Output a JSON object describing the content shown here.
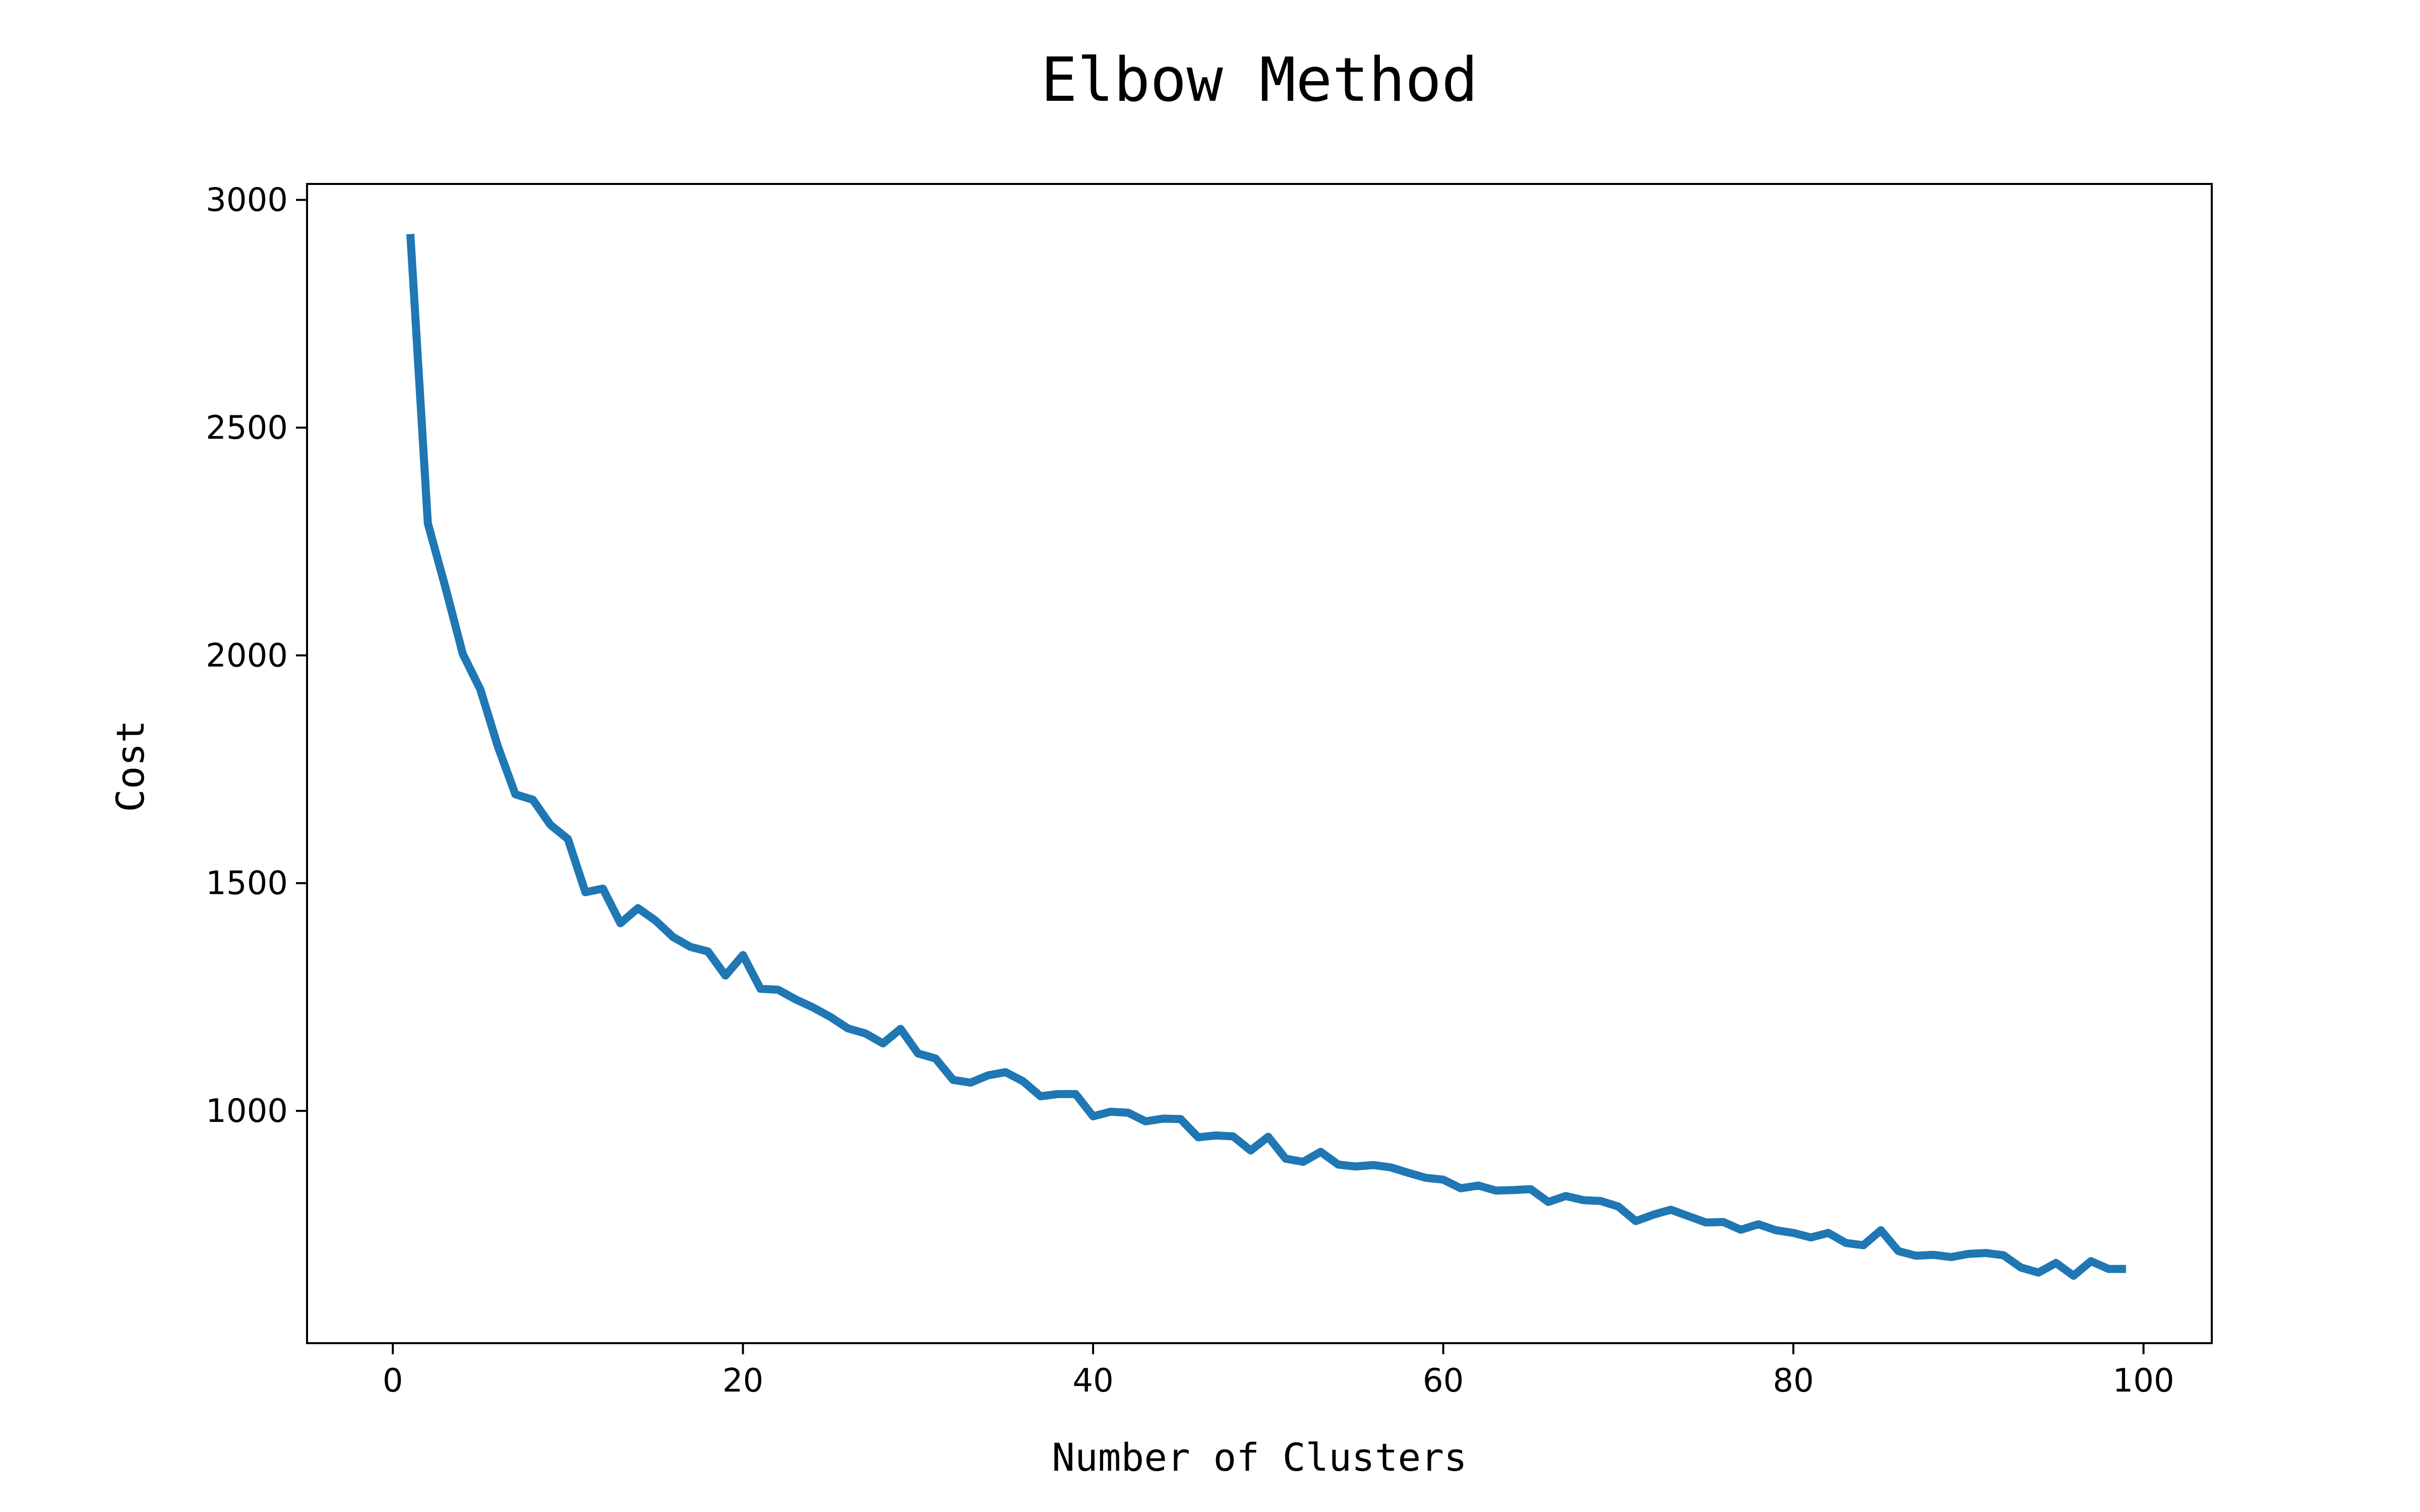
{
  "chart_data": {
    "type": "line",
    "title": "Elbow Method",
    "xlabel": "Number of Clusters",
    "ylabel": "Cost",
    "xlim": [
      -4.9,
      103.9
    ],
    "ylim": [
      490,
      3035
    ],
    "xticks": [
      0,
      20,
      40,
      60,
      80,
      100
    ],
    "yticks": [
      1000,
      1500,
      2000,
      2500,
      3000
    ],
    "grid": false,
    "legend": "none",
    "colors": {
      "series": "#1f77b4",
      "frame": "#000000"
    },
    "series": [
      {
        "x": [
          1,
          2,
          3,
          4,
          5,
          6,
          7,
          8,
          9,
          10,
          11,
          12,
          13,
          14,
          15,
          16,
          17,
          18,
          19,
          20,
          21,
          22,
          23,
          24,
          25,
          26,
          27,
          28,
          29,
          30,
          31,
          32,
          33,
          34,
          35,
          36,
          37,
          38,
          39,
          40,
          41,
          42,
          43,
          44,
          45,
          46,
          47,
          48,
          49,
          50,
          51,
          52,
          53,
          54,
          55,
          56,
          57,
          58,
          59,
          60,
          61,
          62,
          63,
          64,
          65,
          66,
          67,
          68,
          69,
          70,
          71,
          72,
          73,
          74,
          75,
          76,
          77,
          78,
          79,
          80,
          81,
          82,
          83,
          84,
          85,
          86,
          87,
          88,
          89,
          90,
          91,
          92,
          93,
          94,
          95,
          96,
          97,
          98,
          99
        ],
        "values": [
          2925,
          2290,
          2150,
          2003,
          1925,
          1800,
          1695,
          1683,
          1628,
          1597,
          1480,
          1488,
          1412,
          1445,
          1418,
          1382,
          1360,
          1350,
          1297,
          1342,
          1268,
          1266,
          1245,
          1227,
          1206,
          1181,
          1170,
          1148,
          1180,
          1126,
          1115,
          1068,
          1062,
          1078,
          1085,
          1065,
          1032,
          1037,
          1037,
          988,
          998,
          996,
          977,
          983,
          982,
          942,
          946,
          944,
          913,
          943,
          895,
          888,
          910,
          882,
          878,
          881,
          876,
          864,
          853,
          849,
          830,
          836,
          825,
          826,
          828,
          800,
          813,
          804,
          802,
          790,
          758,
          772,
          783,
          769,
          755,
          756,
          739,
          751,
          738,
          732,
          722,
          732,
          710,
          705,
          738,
          692,
          682,
          684,
          679,
          686,
          688,
          683,
          656,
          645,
          666,
          638,
          670,
          653,
          653
        ]
      }
    ]
  }
}
